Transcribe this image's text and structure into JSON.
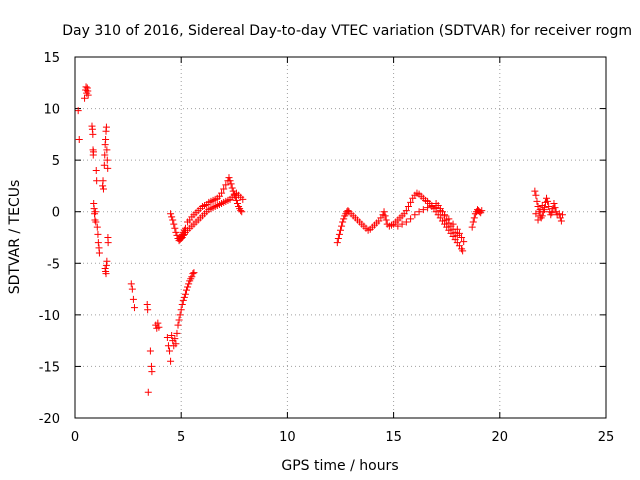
{
  "chart_data": {
    "type": "scatter",
    "title": "Day 310 of 2016, Sidereal Day-to-day VTEC variation (SDTVAR) for receiver rogm",
    "xlabel": "GPS time / hours",
    "ylabel": "SDTVAR / TECUs",
    "xlim": [
      0,
      25
    ],
    "ylim": [
      -20,
      15
    ],
    "xticks": [
      0,
      5,
      10,
      15,
      20,
      25
    ],
    "yticks": [
      -20,
      -15,
      -10,
      -5,
      0,
      5,
      10,
      15
    ],
    "xtick_labels": [
      "0",
      "5",
      "10",
      "15",
      "20",
      "25"
    ],
    "ytick_labels": [
      "-20",
      "-15",
      "-10",
      "-5",
      "0",
      "5",
      "10",
      "15"
    ],
    "grid": true,
    "marker": "+",
    "color": "#ff0000",
    "series": [
      {
        "points": [
          [
            0.15,
            9.8
          ],
          [
            0.2,
            7.0
          ],
          [
            0.45,
            11.0
          ],
          [
            0.5,
            11.8
          ],
          [
            0.52,
            12.1
          ],
          [
            0.55,
            11.5
          ],
          [
            0.58,
            12.0
          ],
          [
            0.6,
            11.7
          ],
          [
            0.62,
            11.3
          ],
          [
            0.8,
            8.3
          ],
          [
            0.82,
            8.0
          ],
          [
            0.84,
            7.5
          ],
          [
            0.85,
            6.0
          ],
          [
            0.86,
            5.5
          ],
          [
            0.87,
            5.8
          ],
          [
            0.88,
            0.8
          ],
          [
            0.9,
            0.3
          ],
          [
            0.92,
            -0.2
          ],
          [
            0.94,
            -0.8
          ],
          [
            0.96,
            0.0
          ],
          [
            0.98,
            -1.0
          ],
          [
            1.0,
            4.0
          ],
          [
            1.02,
            3.0
          ],
          [
            1.05,
            -1.5
          ],
          [
            1.08,
            -2.2
          ],
          [
            1.1,
            -3.0
          ],
          [
            1.13,
            -3.5
          ],
          [
            1.15,
            -4.0
          ],
          [
            1.3,
            2.5
          ],
          [
            1.32,
            3.0
          ],
          [
            1.34,
            2.2
          ],
          [
            1.38,
            4.5
          ],
          [
            1.4,
            5.5
          ],
          [
            1.42,
            6.5
          ],
          [
            1.44,
            7.0
          ],
          [
            1.46,
            7.8
          ],
          [
            1.48,
            8.2
          ],
          [
            1.5,
            6.0
          ],
          [
            1.52,
            5.0
          ],
          [
            1.54,
            4.2
          ],
          [
            1.42,
            -5.5
          ],
          [
            1.44,
            -5.8
          ],
          [
            1.46,
            -6.0
          ],
          [
            1.48,
            -5.2
          ],
          [
            1.5,
            -4.8
          ],
          [
            1.55,
            -2.5
          ],
          [
            1.56,
            -3.0
          ],
          [
            2.65,
            -7.0
          ],
          [
            2.7,
            -7.5
          ],
          [
            2.75,
            -8.5
          ],
          [
            2.8,
            -9.3
          ],
          [
            3.4,
            -9.0
          ],
          [
            3.42,
            -9.5
          ],
          [
            3.45,
            -17.5
          ],
          [
            3.55,
            -13.5
          ],
          [
            3.6,
            -15.0
          ],
          [
            3.62,
            -15.5
          ],
          [
            3.8,
            -11.0
          ],
          [
            3.85,
            -11.3
          ],
          [
            3.9,
            -10.8
          ],
          [
            3.95,
            -11.2
          ],
          [
            4.35,
            -12.2
          ],
          [
            4.4,
            -13.0
          ],
          [
            4.45,
            -13.5
          ],
          [
            4.5,
            -14.5
          ],
          [
            4.55,
            -12.0
          ],
          [
            4.6,
            -12.5
          ],
          [
            4.65,
            -13.0
          ],
          [
            4.7,
            -12.3
          ],
          [
            4.75,
            -12.8
          ],
          [
            4.8,
            -11.8
          ],
          [
            4.85,
            -11.0
          ],
          [
            4.9,
            -10.5
          ],
          [
            4.95,
            -10.0
          ],
          [
            5.0,
            -9.5
          ],
          [
            5.05,
            -9.0
          ],
          [
            5.1,
            -8.6
          ],
          [
            5.15,
            -8.3
          ],
          [
            5.2,
            -8.0
          ],
          [
            5.25,
            -7.6
          ],
          [
            5.3,
            -7.3
          ],
          [
            5.35,
            -7.0
          ],
          [
            5.4,
            -6.7
          ],
          [
            5.45,
            -6.5
          ],
          [
            5.5,
            -6.3
          ],
          [
            5.55,
            -6.0
          ],
          [
            5.6,
            -5.9
          ],
          [
            4.5,
            -0.2
          ],
          [
            4.55,
            -0.5
          ],
          [
            4.6,
            -0.8
          ],
          [
            4.65,
            -1.2
          ],
          [
            4.7,
            -1.6
          ],
          [
            4.75,
            -2.0
          ],
          [
            4.8,
            -2.3
          ],
          [
            4.85,
            -2.6
          ],
          [
            4.9,
            -2.8
          ],
          [
            4.95,
            -2.7
          ],
          [
            5.0,
            -2.4
          ],
          [
            5.05,
            -2.2
          ],
          [
            5.1,
            -2.0
          ],
          [
            5.15,
            -1.8
          ],
          [
            5.2,
            -1.6
          ],
          [
            5.0,
            -2.6
          ],
          [
            5.05,
            -2.5
          ],
          [
            5.1,
            -2.3
          ],
          [
            5.15,
            -2.2
          ],
          [
            5.2,
            -2.0
          ],
          [
            5.3,
            -1.8
          ],
          [
            5.4,
            -1.6
          ],
          [
            5.5,
            -1.4
          ],
          [
            5.6,
            -1.2
          ],
          [
            5.7,
            -1.0
          ],
          [
            5.8,
            -0.8
          ],
          [
            5.9,
            -0.6
          ],
          [
            6.0,
            -0.4
          ],
          [
            5.3,
            -1.0
          ],
          [
            5.4,
            -0.8
          ],
          [
            5.5,
            -0.5
          ],
          [
            5.6,
            -0.3
          ],
          [
            5.7,
            -0.1
          ],
          [
            5.8,
            0.1
          ],
          [
            5.9,
            0.3
          ],
          [
            6.0,
            0.5
          ],
          [
            6.1,
            0.6
          ],
          [
            6.2,
            0.7
          ],
          [
            6.1,
            -0.2
          ],
          [
            6.2,
            0.0
          ],
          [
            6.3,
            0.2
          ],
          [
            6.4,
            0.3
          ],
          [
            6.5,
            0.4
          ],
          [
            6.6,
            0.5
          ],
          [
            6.7,
            0.6
          ],
          [
            6.8,
            0.7
          ],
          [
            6.9,
            0.8
          ],
          [
            7.0,
            0.9
          ],
          [
            7.1,
            1.0
          ],
          [
            7.2,
            1.1
          ],
          [
            6.3,
            0.9
          ],
          [
            6.4,
            1.0
          ],
          [
            6.5,
            1.1
          ],
          [
            6.6,
            1.2
          ],
          [
            6.7,
            1.3
          ],
          [
            6.8,
            1.5
          ],
          [
            6.9,
            1.8
          ],
          [
            7.0,
            2.2
          ],
          [
            7.1,
            2.6
          ],
          [
            7.2,
            3.0
          ],
          [
            7.25,
            3.3
          ],
          [
            7.3,
            3.0
          ],
          [
            7.35,
            2.7
          ],
          [
            7.4,
            2.3
          ],
          [
            7.45,
            2.0
          ],
          [
            7.5,
            1.7
          ],
          [
            7.55,
            1.4
          ],
          [
            7.6,
            1.1
          ],
          [
            7.65,
            0.8
          ],
          [
            7.7,
            0.5
          ],
          [
            7.75,
            0.3
          ],
          [
            7.8,
            0.1
          ],
          [
            7.85,
            0.0
          ],
          [
            7.3,
            1.2
          ],
          [
            7.4,
            1.4
          ],
          [
            7.5,
            1.6
          ],
          [
            7.6,
            1.8
          ],
          [
            7.7,
            1.6
          ],
          [
            7.8,
            1.4
          ],
          [
            7.9,
            1.2
          ],
          [
            12.35,
            -3.0
          ],
          [
            12.4,
            -2.6
          ],
          [
            12.45,
            -2.2
          ],
          [
            12.5,
            -1.8
          ],
          [
            12.55,
            -1.4
          ],
          [
            12.6,
            -1.0
          ],
          [
            12.65,
            -0.7
          ],
          [
            12.7,
            -0.4
          ],
          [
            12.75,
            -0.2
          ],
          [
            12.8,
            0.0
          ],
          [
            12.85,
            0.1
          ],
          [
            12.9,
            0.0
          ],
          [
            13.0,
            -0.2
          ],
          [
            13.1,
            -0.4
          ],
          [
            13.2,
            -0.6
          ],
          [
            13.3,
            -0.8
          ],
          [
            13.4,
            -1.0
          ],
          [
            13.5,
            -1.2
          ],
          [
            13.6,
            -1.4
          ],
          [
            13.7,
            -1.6
          ],
          [
            13.8,
            -1.8
          ],
          [
            13.9,
            -1.7
          ],
          [
            14.0,
            -1.5
          ],
          [
            14.1,
            -1.3
          ],
          [
            14.2,
            -1.1
          ],
          [
            14.3,
            -0.9
          ],
          [
            14.4,
            -0.6
          ],
          [
            14.5,
            -0.3
          ],
          [
            14.55,
            0.0
          ],
          [
            14.6,
            -0.4
          ],
          [
            14.65,
            -0.8
          ],
          [
            14.7,
            -1.2
          ],
          [
            14.8,
            -1.4
          ],
          [
            14.9,
            -1.3
          ],
          [
            15.0,
            -1.2
          ],
          [
            15.1,
            -1.0
          ],
          [
            15.2,
            -0.8
          ],
          [
            15.3,
            -0.6
          ],
          [
            15.4,
            -0.4
          ],
          [
            15.5,
            -0.2
          ],
          [
            15.6,
            0.1
          ],
          [
            15.7,
            0.5
          ],
          [
            15.8,
            0.9
          ],
          [
            15.9,
            1.3
          ],
          [
            16.0,
            1.6
          ],
          [
            16.1,
            1.8
          ],
          [
            16.2,
            1.7
          ],
          [
            16.3,
            1.5
          ],
          [
            16.4,
            1.3
          ],
          [
            16.5,
            1.1
          ],
          [
            16.6,
            1.0
          ],
          [
            16.7,
            0.8
          ],
          [
            16.8,
            0.6
          ],
          [
            16.9,
            0.3
          ],
          [
            17.0,
            0.0
          ],
          [
            17.1,
            -0.3
          ],
          [
            17.2,
            -0.6
          ],
          [
            17.3,
            -0.9
          ],
          [
            17.4,
            -1.2
          ],
          [
            17.5,
            -1.5
          ],
          [
            17.6,
            -1.8
          ],
          [
            17.7,
            -2.1
          ],
          [
            17.8,
            -2.4
          ],
          [
            17.9,
            -2.7
          ],
          [
            18.0,
            -3.0
          ],
          [
            18.1,
            -3.3
          ],
          [
            18.2,
            -3.6
          ],
          [
            18.25,
            -3.8
          ],
          [
            15.2,
            -1.4
          ],
          [
            15.4,
            -1.2
          ],
          [
            15.6,
            -1.0
          ],
          [
            15.8,
            -0.7
          ],
          [
            16.0,
            -0.3
          ],
          [
            16.2,
            0.0
          ],
          [
            16.4,
            0.2
          ],
          [
            16.6,
            0.4
          ],
          [
            16.8,
            0.5
          ],
          [
            17.0,
            0.4
          ],
          [
            17.2,
            0.1
          ],
          [
            17.4,
            -0.3
          ],
          [
            17.6,
            -0.7
          ],
          [
            17.8,
            -1.2
          ],
          [
            18.0,
            -1.7
          ],
          [
            18.1,
            -2.1
          ],
          [
            18.2,
            -2.5
          ],
          [
            18.3,
            -2.9
          ],
          [
            17.0,
            0.8
          ],
          [
            17.1,
            0.6
          ],
          [
            17.2,
            0.3
          ],
          [
            17.3,
            0.0
          ],
          [
            17.4,
            -0.4
          ],
          [
            17.5,
            -0.8
          ],
          [
            17.6,
            -1.1
          ],
          [
            17.7,
            -1.4
          ],
          [
            17.8,
            -1.7
          ],
          [
            17.9,
            -2.0
          ],
          [
            18.0,
            -2.3
          ],
          [
            18.7,
            -1.5
          ],
          [
            18.75,
            -1.0
          ],
          [
            18.8,
            -0.6
          ],
          [
            18.85,
            -0.2
          ],
          [
            18.9,
            0.0
          ],
          [
            18.95,
            0.2
          ],
          [
            19.0,
            0.1
          ],
          [
            19.05,
            0.0
          ],
          [
            19.1,
            -0.1
          ],
          [
            19.15,
            0.1
          ],
          [
            21.65,
            2.0
          ],
          [
            21.7,
            1.6
          ],
          [
            21.75,
            1.0
          ],
          [
            21.8,
            0.5
          ],
          [
            21.85,
            0.0
          ],
          [
            21.9,
            -0.4
          ],
          [
            21.95,
            -0.6
          ],
          [
            22.0,
            -0.4
          ],
          [
            22.05,
            0.0
          ],
          [
            22.1,
            0.4
          ],
          [
            22.15,
            0.9
          ],
          [
            22.2,
            1.3
          ],
          [
            22.25,
            1.0
          ],
          [
            22.3,
            0.5
          ],
          [
            22.35,
            0.0
          ],
          [
            22.4,
            -0.3
          ],
          [
            22.45,
            -0.1
          ],
          [
            22.5,
            0.3
          ],
          [
            22.55,
            0.8
          ],
          [
            22.6,
            0.4
          ],
          [
            22.65,
            0.0
          ],
          [
            22.7,
            -0.3
          ],
          [
            22.8,
            -0.2
          ],
          [
            22.85,
            -0.6
          ],
          [
            22.9,
            -0.9
          ],
          [
            22.95,
            -0.3
          ],
          [
            21.7,
            -0.2
          ],
          [
            21.8,
            -0.8
          ],
          [
            21.9,
            0.2
          ],
          [
            22.0,
            0.6
          ],
          [
            22.1,
            0.2
          ]
        ]
      }
    ]
  }
}
